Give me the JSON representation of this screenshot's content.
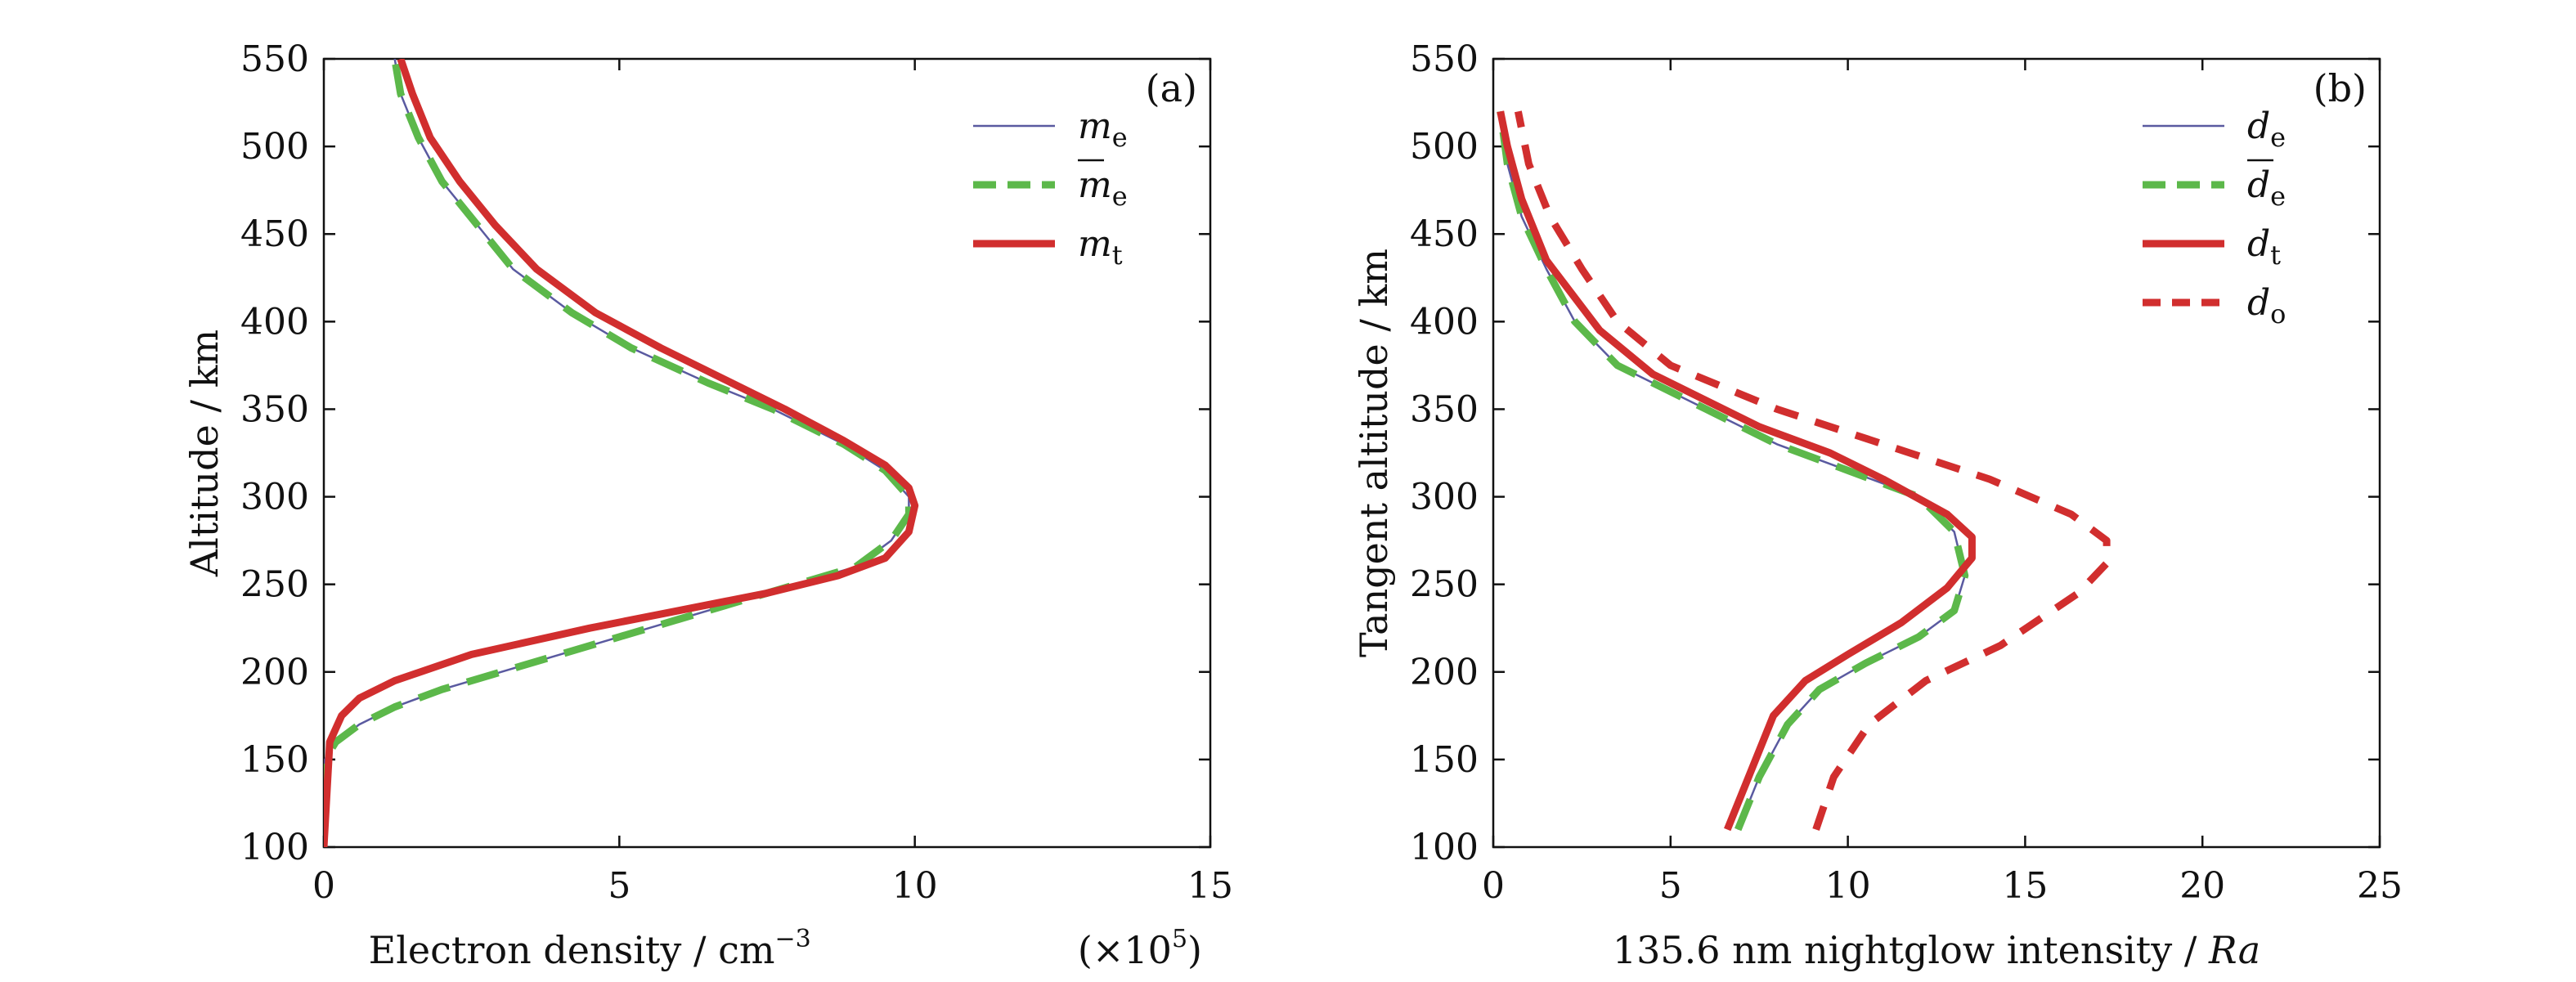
{
  "colors": {
    "measured_thin": "#5a5aa0",
    "estimated_dashed": "#5cb84a",
    "true_red": "#d12e2e",
    "axis": "#111111"
  },
  "chart_data": [
    {
      "type": "line",
      "panel_label": "(a)",
      "xlabel": "Electron density / cm",
      "xlabel_exponent": "−3",
      "x_multiplier_prefix": "(×10",
      "x_multiplier_exponent": "5",
      "x_multiplier_suffix": ")",
      "ylabel": "Altitude / km",
      "xlim": [
        0,
        15
      ],
      "ylim": [
        100,
        550
      ],
      "xticks": [
        0,
        5,
        10,
        15
      ],
      "yticks": [
        100,
        150,
        200,
        250,
        300,
        350,
        400,
        450,
        500,
        550
      ],
      "grid": false,
      "legend_position": "top-right",
      "series": [
        {
          "name": "m",
          "subscript": "e",
          "overbar": false,
          "color": "#5a5aa0",
          "style": "thin-solid",
          "points": [
            [
              0.0,
              100
            ],
            [
              0.02,
              150
            ],
            [
              0.2,
              160
            ],
            [
              0.6,
              170
            ],
            [
              1.2,
              180
            ],
            [
              2.0,
              190
            ],
            [
              3.0,
              200
            ],
            [
              4.0,
              210
            ],
            [
              5.0,
              220
            ],
            [
              6.0,
              230
            ],
            [
              7.0,
              240
            ],
            [
              8.0,
              250
            ],
            [
              9.0,
              260
            ],
            [
              9.6,
              275
            ],
            [
              9.9,
              290
            ],
            [
              9.9,
              300
            ],
            [
              9.5,
              315
            ],
            [
              8.8,
              330
            ],
            [
              7.6,
              350
            ],
            [
              6.5,
              365
            ],
            [
              5.2,
              385
            ],
            [
              4.2,
              405
            ],
            [
              3.2,
              430
            ],
            [
              2.6,
              455
            ],
            [
              2.0,
              480
            ],
            [
              1.6,
              505
            ],
            [
              1.3,
              530
            ],
            [
              1.2,
              550
            ]
          ]
        },
        {
          "name": "m",
          "subscript": "e",
          "overbar": true,
          "color": "#5cb84a",
          "style": "dashed",
          "points": [
            [
              0.0,
              100
            ],
            [
              0.02,
              150
            ],
            [
              0.2,
              160
            ],
            [
              0.6,
              170
            ],
            [
              1.2,
              180
            ],
            [
              2.0,
              190
            ],
            [
              3.0,
              200
            ],
            [
              4.0,
              210
            ],
            [
              5.0,
              220
            ],
            [
              6.0,
              230
            ],
            [
              7.0,
              240
            ],
            [
              8.0,
              250
            ],
            [
              9.0,
              260
            ],
            [
              9.6,
              275
            ],
            [
              9.9,
              290
            ],
            [
              9.9,
              300
            ],
            [
              9.5,
              315
            ],
            [
              8.8,
              330
            ],
            [
              7.6,
              350
            ],
            [
              6.5,
              365
            ],
            [
              5.2,
              385
            ],
            [
              4.2,
              405
            ],
            [
              3.2,
              430
            ],
            [
              2.6,
              455
            ],
            [
              2.0,
              480
            ],
            [
              1.6,
              505
            ],
            [
              1.3,
              530
            ],
            [
              1.2,
              550
            ]
          ]
        },
        {
          "name": "m",
          "subscript": "t",
          "overbar": false,
          "color": "#d12e2e",
          "style": "thick-solid",
          "points": [
            [
              0.0,
              100
            ],
            [
              0.1,
              160
            ],
            [
              0.3,
              175
            ],
            [
              0.6,
              185
            ],
            [
              1.2,
              195
            ],
            [
              2.5,
              210
            ],
            [
              4.5,
              225
            ],
            [
              6.0,
              235
            ],
            [
              7.5,
              245
            ],
            [
              8.7,
              255
            ],
            [
              9.5,
              265
            ],
            [
              9.9,
              280
            ],
            [
              10.0,
              295
            ],
            [
              9.9,
              305
            ],
            [
              9.5,
              318
            ],
            [
              8.8,
              332
            ],
            [
              7.8,
              350
            ],
            [
              6.9,
              365
            ],
            [
              5.7,
              385
            ],
            [
              4.6,
              405
            ],
            [
              3.6,
              430
            ],
            [
              2.9,
              455
            ],
            [
              2.3,
              480
            ],
            [
              1.8,
              505
            ],
            [
              1.5,
              530
            ],
            [
              1.3,
              550
            ]
          ]
        }
      ]
    },
    {
      "type": "line",
      "panel_label": "(b)",
      "xlabel": "135.6 nm nightglow intensity / ",
      "xlabel_italic": "Ra",
      "ylabel": "Tangent altitude / km",
      "xlim": [
        0,
        25
      ],
      "ylim": [
        100,
        550
      ],
      "xticks": [
        0,
        5,
        10,
        15,
        20,
        25
      ],
      "yticks": [
        100,
        150,
        200,
        250,
        300,
        350,
        400,
        450,
        500,
        550
      ],
      "grid": false,
      "legend_position": "top-right",
      "series": [
        {
          "name": "d",
          "subscript": "e",
          "overbar": false,
          "color": "#5a5aa0",
          "style": "thin-solid",
          "points": [
            [
              6.9,
              110
            ],
            [
              7.5,
              140
            ],
            [
              8.3,
              170
            ],
            [
              9.2,
              190
            ],
            [
              10.5,
              205
            ],
            [
              12.0,
              220
            ],
            [
              13.0,
              235
            ],
            [
              13.3,
              255
            ],
            [
              13.0,
              280
            ],
            [
              12.0,
              300
            ],
            [
              10.0,
              315
            ],
            [
              8.0,
              330
            ],
            [
              6.0,
              350
            ],
            [
              3.5,
              375
            ],
            [
              2.3,
              400
            ],
            [
              1.5,
              430
            ],
            [
              0.8,
              460
            ],
            [
              0.4,
              490
            ],
            [
              0.2,
              520
            ]
          ]
        },
        {
          "name": "d",
          "subscript": "e",
          "overbar": true,
          "color": "#5cb84a",
          "style": "dashed",
          "points": [
            [
              6.9,
              110
            ],
            [
              7.5,
              140
            ],
            [
              8.3,
              170
            ],
            [
              9.2,
              190
            ],
            [
              10.5,
              205
            ],
            [
              12.0,
              220
            ],
            [
              13.0,
              235
            ],
            [
              13.3,
              255
            ],
            [
              13.0,
              280
            ],
            [
              12.0,
              300
            ],
            [
              10.0,
              315
            ],
            [
              8.0,
              330
            ],
            [
              6.0,
              350
            ],
            [
              3.5,
              375
            ],
            [
              2.3,
              400
            ],
            [
              1.5,
              430
            ],
            [
              0.8,
              460
            ],
            [
              0.4,
              490
            ],
            [
              0.2,
              520
            ]
          ]
        },
        {
          "name": "d",
          "subscript": "t",
          "overbar": false,
          "color": "#d12e2e",
          "style": "thick-solid",
          "points": [
            [
              6.6,
              110
            ],
            [
              7.2,
              140
            ],
            [
              7.9,
              175
            ],
            [
              8.8,
              195
            ],
            [
              10.0,
              210
            ],
            [
              11.5,
              228
            ],
            [
              12.8,
              248
            ],
            [
              13.5,
              265
            ],
            [
              13.5,
              277
            ],
            [
              12.8,
              290
            ],
            [
              11.0,
              310
            ],
            [
              9.5,
              325
            ],
            [
              7.5,
              340
            ],
            [
              4.5,
              370
            ],
            [
              3.0,
              395
            ],
            [
              1.5,
              435
            ],
            [
              0.8,
              470
            ],
            [
              0.4,
              500
            ],
            [
              0.2,
              520
            ]
          ]
        },
        {
          "name": "d",
          "subscript": "o",
          "overbar": false,
          "color": "#d12e2e",
          "style": "thick-dashed",
          "points": [
            [
              9.1,
              110
            ],
            [
              9.6,
              140
            ],
            [
              10.6,
              170
            ],
            [
              12.2,
              195
            ],
            [
              14.3,
              215
            ],
            [
              16.5,
              245
            ],
            [
              17.3,
              262
            ],
            [
              17.3,
              275
            ],
            [
              16.3,
              290
            ],
            [
              14.0,
              310
            ],
            [
              11.0,
              330
            ],
            [
              8.0,
              350
            ],
            [
              5.0,
              375
            ],
            [
              3.5,
              400
            ],
            [
              2.5,
              430
            ],
            [
              1.6,
              460
            ],
            [
              1.0,
              490
            ],
            [
              0.7,
              520
            ]
          ]
        }
      ]
    }
  ]
}
